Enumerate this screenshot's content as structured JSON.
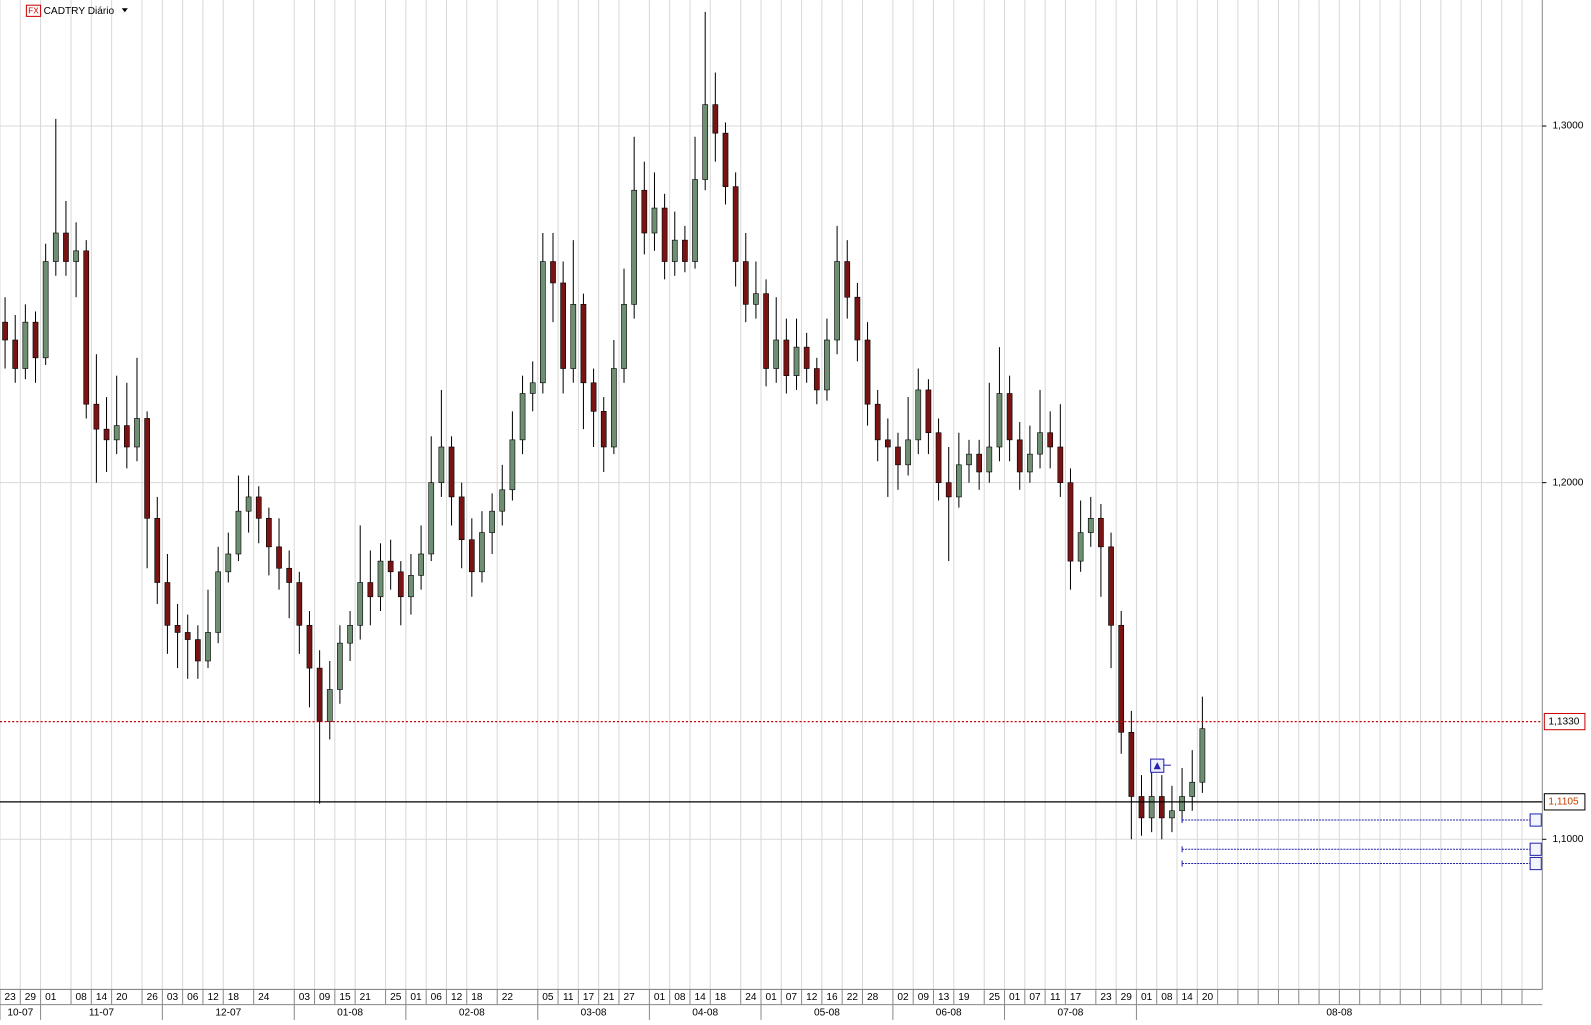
{
  "chart_data": {
    "type": "candlestick",
    "title": "CADTRY Diário",
    "badge": "FX",
    "up_color": "#6f8f73",
    "down_color": "#7a1414",
    "grid": true,
    "ylim": [
      1.0579,
      1.3353
    ],
    "yticks": [
      {
        "value": 1.1,
        "label": "1,1000"
      },
      {
        "value": 1.2,
        "label": "1,2000"
      },
      {
        "value": 1.3,
        "label": "1,3000"
      }
    ],
    "price_lines": [
      {
        "value": 1.133,
        "label": "1,1330",
        "color": "#cc0000"
      },
      {
        "value": 1.1105,
        "label": "1,1105",
        "color": "#000000"
      }
    ],
    "orders": [
      1.1054,
      1.0972,
      1.0932
    ],
    "order_color": "#2222aa",
    "months": [
      {
        "label": "10-07",
        "span": 4
      },
      {
        "label": "11-07",
        "span": 12
      },
      {
        "label": "12-07",
        "span": 13
      },
      {
        "label": "01-08",
        "span": 11
      },
      {
        "label": "02-08",
        "span": 13
      },
      {
        "label": "03-08",
        "span": 11
      },
      {
        "label": "04-08",
        "span": 11
      },
      {
        "label": "05-08",
        "span": 13
      },
      {
        "label": "06-08",
        "span": 11
      },
      {
        "label": "07-08",
        "span": 13
      },
      {
        "label": "08-08",
        "span": 40
      }
    ],
    "categories": [
      "23",
      null,
      "29",
      null,
      "01",
      null,
      null,
      "08",
      null,
      "14",
      null,
      "20",
      null,
      null,
      "26",
      null,
      "03",
      null,
      "06",
      null,
      "12",
      null,
      "18",
      null,
      null,
      "24",
      null,
      null,
      null,
      "03",
      null,
      "09",
      null,
      "15",
      null,
      "21",
      null,
      null,
      "25",
      null,
      "01",
      null,
      "06",
      null,
      "12",
      null,
      "18",
      null,
      null,
      "22",
      null,
      null,
      null,
      "05",
      null,
      "11",
      null,
      "17",
      null,
      "21",
      null,
      "27",
      null,
      null,
      "01",
      null,
      "08",
      null,
      "14",
      null,
      "18",
      null,
      null,
      "24",
      null,
      "01",
      null,
      "07",
      null,
      "12",
      null,
      "16",
      null,
      "22",
      null,
      "28",
      null,
      null,
      "02",
      null,
      "09",
      null,
      "13",
      null,
      "19",
      null,
      null,
      "25",
      null,
      "01",
      null,
      "07",
      null,
      "11",
      null,
      "17",
      null,
      null,
      "23",
      null,
      "29",
      null,
      "01",
      null,
      "08",
      null,
      "14",
      null,
      "20",
      null,
      null,
      null,
      null,
      null,
      null,
      null,
      null,
      null,
      null,
      null,
      null,
      null,
      null,
      null,
      null,
      null,
      null,
      null,
      null,
      null,
      null,
      null,
      null,
      null,
      null,
      null,
      null,
      null,
      null,
      null,
      null,
      null
    ],
    "candles": [
      [
        1.245,
        1.252,
        1.232,
        1.24
      ],
      [
        1.24,
        1.247,
        1.228,
        1.232
      ],
      [
        1.232,
        1.25,
        1.229,
        1.245
      ],
      [
        1.245,
        1.248,
        1.228,
        1.235
      ],
      [
        1.235,
        1.267,
        1.233,
        1.262
      ],
      [
        1.262,
        1.302,
        1.258,
        1.27
      ],
      [
        1.27,
        1.279,
        1.258,
        1.262
      ],
      [
        1.262,
        1.273,
        1.252,
        1.265
      ],
      [
        1.265,
        1.268,
        1.218,
        1.222
      ],
      [
        1.222,
        1.236,
        1.2,
        1.215
      ],
      [
        1.215,
        1.224,
        1.203,
        1.212
      ],
      [
        1.212,
        1.23,
        1.208,
        1.216
      ],
      [
        1.216,
        1.228,
        1.204,
        1.21
      ],
      [
        1.21,
        1.235,
        1.206,
        1.218
      ],
      [
        1.218,
        1.22,
        1.176,
        1.19
      ],
      [
        1.19,
        1.196,
        1.166,
        1.172
      ],
      [
        1.172,
        1.18,
        1.152,
        1.16
      ],
      [
        1.16,
        1.166,
        1.148,
        1.158
      ],
      [
        1.158,
        1.163,
        1.145,
        1.156
      ],
      [
        1.156,
        1.16,
        1.145,
        1.15
      ],
      [
        1.15,
        1.17,
        1.148,
        1.158
      ],
      [
        1.158,
        1.182,
        1.155,
        1.175
      ],
      [
        1.175,
        1.186,
        1.172,
        1.18
      ],
      [
        1.18,
        1.202,
        1.178,
        1.192
      ],
      [
        1.192,
        1.202,
        1.186,
        1.196
      ],
      [
        1.196,
        1.199,
        1.183,
        1.19
      ],
      [
        1.19,
        1.193,
        1.174,
        1.182
      ],
      [
        1.182,
        1.19,
        1.17,
        1.176
      ],
      [
        1.176,
        1.181,
        1.162,
        1.172
      ],
      [
        1.172,
        1.175,
        1.152,
        1.16
      ],
      [
        1.16,
        1.164,
        1.137,
        1.148
      ],
      [
        1.148,
        1.153,
        1.11,
        1.133
      ],
      [
        1.133,
        1.15,
        1.128,
        1.142
      ],
      [
        1.142,
        1.16,
        1.138,
        1.155
      ],
      [
        1.155,
        1.164,
        1.15,
        1.16
      ],
      [
        1.16,
        1.188,
        1.156,
        1.172
      ],
      [
        1.172,
        1.181,
        1.16,
        1.168
      ],
      [
        1.168,
        1.183,
        1.164,
        1.178
      ],
      [
        1.178,
        1.184,
        1.17,
        1.175
      ],
      [
        1.175,
        1.178,
        1.16,
        1.168
      ],
      [
        1.168,
        1.18,
        1.163,
        1.174
      ],
      [
        1.174,
        1.188,
        1.17,
        1.18
      ],
      [
        1.18,
        1.213,
        1.178,
        1.2
      ],
      [
        1.2,
        1.226,
        1.196,
        1.21
      ],
      [
        1.21,
        1.213,
        1.188,
        1.196
      ],
      [
        1.196,
        1.2,
        1.176,
        1.184
      ],
      [
        1.184,
        1.19,
        1.168,
        1.175
      ],
      [
        1.175,
        1.192,
        1.172,
        1.186
      ],
      [
        1.186,
        1.197,
        1.18,
        1.192
      ],
      [
        1.192,
        1.205,
        1.188,
        1.198
      ],
      [
        1.198,
        1.22,
        1.195,
        1.212
      ],
      [
        1.212,
        1.23,
        1.208,
        1.225
      ],
      [
        1.225,
        1.234,
        1.22,
        1.228
      ],
      [
        1.228,
        1.27,
        1.225,
        1.262
      ],
      [
        1.262,
        1.27,
        1.245,
        1.256
      ],
      [
        1.256,
        1.262,
        1.225,
        1.232
      ],
      [
        1.232,
        1.268,
        1.228,
        1.25
      ],
      [
        1.25,
        1.253,
        1.215,
        1.228
      ],
      [
        1.228,
        1.232,
        1.21,
        1.22
      ],
      [
        1.22,
        1.224,
        1.203,
        1.21
      ],
      [
        1.21,
        1.24,
        1.208,
        1.232
      ],
      [
        1.232,
        1.26,
        1.228,
        1.25
      ],
      [
        1.25,
        1.297,
        1.246,
        1.282
      ],
      [
        1.282,
        1.29,
        1.264,
        1.27
      ],
      [
        1.27,
        1.287,
        1.265,
        1.277
      ],
      [
        1.277,
        1.281,
        1.257,
        1.262
      ],
      [
        1.262,
        1.276,
        1.258,
        1.268
      ],
      [
        1.268,
        1.272,
        1.259,
        1.262
      ],
      [
        1.262,
        1.297,
        1.26,
        1.285
      ],
      [
        1.285,
        1.332,
        1.282,
        1.306
      ],
      [
        1.306,
        1.315,
        1.29,
        1.298
      ],
      [
        1.298,
        1.301,
        1.278,
        1.283
      ],
      [
        1.283,
        1.287,
        1.255,
        1.262
      ],
      [
        1.262,
        1.27,
        1.245,
        1.25
      ],
      [
        1.25,
        1.262,
        1.246,
        1.253
      ],
      [
        1.253,
        1.257,
        1.227,
        1.232
      ],
      [
        1.232,
        1.252,
        1.228,
        1.24
      ],
      [
        1.24,
        1.246,
        1.225,
        1.23
      ],
      [
        1.23,
        1.246,
        1.226,
        1.238
      ],
      [
        1.238,
        1.242,
        1.228,
        1.232
      ],
      [
        1.232,
        1.235,
        1.222,
        1.226
      ],
      [
        1.226,
        1.246,
        1.223,
        1.24
      ],
      [
        1.24,
        1.272,
        1.236,
        1.262
      ],
      [
        1.262,
        1.268,
        1.246,
        1.252
      ],
      [
        1.252,
        1.256,
        1.234,
        1.24
      ],
      [
        1.24,
        1.245,
        1.216,
        1.222
      ],
      [
        1.222,
        1.226,
        1.206,
        1.212
      ],
      [
        1.212,
        1.218,
        1.196,
        1.21
      ],
      [
        1.21,
        1.214,
        1.198,
        1.205
      ],
      [
        1.205,
        1.224,
        1.202,
        1.212
      ],
      [
        1.212,
        1.232,
        1.208,
        1.226
      ],
      [
        1.226,
        1.229,
        1.208,
        1.214
      ],
      [
        1.214,
        1.218,
        1.195,
        1.2
      ],
      [
        1.2,
        1.21,
        1.178,
        1.196
      ],
      [
        1.196,
        1.214,
        1.193,
        1.205
      ],
      [
        1.205,
        1.212,
        1.2,
        1.208
      ],
      [
        1.208,
        1.212,
        1.198,
        1.203
      ],
      [
        1.203,
        1.228,
        1.2,
        1.21
      ],
      [
        1.21,
        1.238,
        1.206,
        1.225
      ],
      [
        1.225,
        1.23,
        1.206,
        1.212
      ],
      [
        1.212,
        1.217,
        1.198,
        1.203
      ],
      [
        1.203,
        1.216,
        1.2,
        1.208
      ],
      [
        1.208,
        1.226,
        1.204,
        1.214
      ],
      [
        1.214,
        1.22,
        1.204,
        1.21
      ],
      [
        1.21,
        1.222,
        1.196,
        1.2
      ],
      [
        1.2,
        1.204,
        1.17,
        1.178
      ],
      [
        1.178,
        1.195,
        1.175,
        1.186
      ],
      [
        1.186,
        1.196,
        1.182,
        1.19
      ],
      [
        1.19,
        1.194,
        1.168,
        1.182
      ],
      [
        1.182,
        1.186,
        1.148,
        1.16
      ],
      [
        1.16,
        1.164,
        1.124,
        1.13
      ],
      [
        1.13,
        1.136,
        1.1,
        1.112
      ],
      [
        1.112,
        1.118,
        1.101,
        1.106
      ],
      [
        1.106,
        1.121,
        1.102,
        1.112
      ],
      [
        1.112,
        1.118,
        1.1,
        1.106
      ],
      [
        1.106,
        1.115,
        1.102,
        1.108
      ],
      [
        1.108,
        1.12,
        1.105,
        1.112
      ],
      [
        1.112,
        1.125,
        1.108,
        1.116
      ],
      [
        1.116,
        1.14,
        1.113,
        1.131
      ]
    ]
  }
}
